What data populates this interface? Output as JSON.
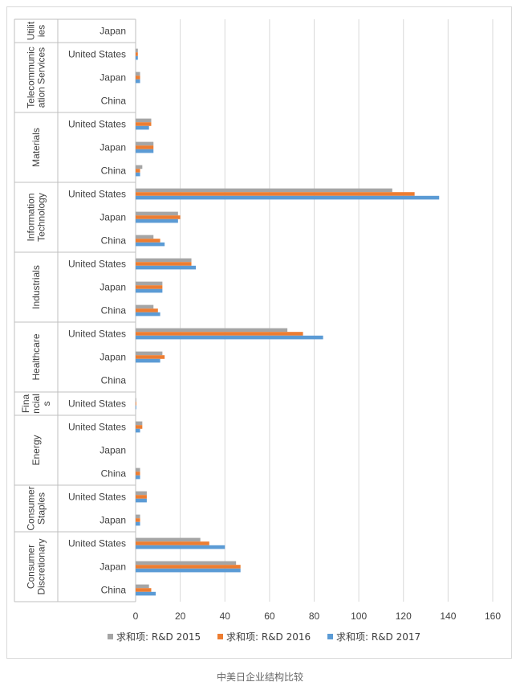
{
  "caption": "中美日企业结构比较",
  "colors": {
    "series_2015": "#a5a5a5",
    "series_2016": "#ed7d31",
    "series_2017": "#5b9bd5",
    "grid": "#d9d9d9",
    "text": "#404040"
  },
  "chart_data": {
    "type": "bar",
    "orientation": "horizontal",
    "title": "",
    "xlim": [
      0,
      160
    ],
    "xticks": [
      0,
      20,
      40,
      60,
      80,
      100,
      120,
      140,
      160
    ],
    "grid": true,
    "legend_position": "bottom",
    "series": [
      {
        "name": "求和项: R&D 2015"
      },
      {
        "name": "求和项: R&D 2016"
      },
      {
        "name": "求和项: R&D 2017"
      }
    ],
    "groups": [
      {
        "sector": "Utilities",
        "sector_lines": [
          "Utilit",
          "ies"
        ],
        "rows": [
          {
            "country": "Japan",
            "values": [
              0,
              0,
              0
            ]
          }
        ]
      },
      {
        "sector": "Telecommunication Services",
        "sector_lines": [
          "Telecommunic",
          "ation Services"
        ],
        "rows": [
          {
            "country": "United States",
            "values": [
              1,
              1,
              1
            ]
          },
          {
            "country": "Japan",
            "values": [
              2,
              2,
              2
            ]
          },
          {
            "country": "China",
            "values": [
              0,
              0,
              0
            ]
          }
        ]
      },
      {
        "sector": "Materials",
        "sector_lines": [
          "Materials"
        ],
        "rows": [
          {
            "country": "United States",
            "values": [
              7,
              7,
              6
            ]
          },
          {
            "country": "Japan",
            "values": [
              8,
              8,
              8
            ]
          },
          {
            "country": "China",
            "values": [
              3,
              2,
              2
            ]
          }
        ]
      },
      {
        "sector": "Information Technology",
        "sector_lines": [
          "Information",
          "Technology"
        ],
        "rows": [
          {
            "country": "United States",
            "values": [
              115,
              125,
              136
            ]
          },
          {
            "country": "Japan",
            "values": [
              19,
              20,
              19
            ]
          },
          {
            "country": "China",
            "values": [
              8,
              11,
              13
            ]
          }
        ]
      },
      {
        "sector": "Industrials",
        "sector_lines": [
          "Industrials"
        ],
        "rows": [
          {
            "country": "United States",
            "values": [
              25,
              25,
              27
            ]
          },
          {
            "country": "Japan",
            "values": [
              12,
              12,
              12
            ]
          },
          {
            "country": "China",
            "values": [
              8,
              10,
              11
            ]
          }
        ]
      },
      {
        "sector": "Healthcare",
        "sector_lines": [
          "Healthcare"
        ],
        "rows": [
          {
            "country": "United States",
            "values": [
              68,
              75,
              84
            ]
          },
          {
            "country": "Japan",
            "values": [
              12,
              13,
              11
            ]
          },
          {
            "country": "China",
            "values": [
              0,
              0,
              0
            ]
          }
        ]
      },
      {
        "sector": "Financials",
        "sector_lines": [
          "Fina",
          "ncial",
          "s"
        ],
        "rows": [
          {
            "country": "United States",
            "values": [
              0.3,
              0.3,
              0.3
            ]
          }
        ]
      },
      {
        "sector": "Energy",
        "sector_lines": [
          "Energy"
        ],
        "rows": [
          {
            "country": "United States",
            "values": [
              3,
              3,
              2
            ]
          },
          {
            "country": "Japan",
            "values": [
              0,
              0,
              0
            ]
          },
          {
            "country": "China",
            "values": [
              2,
              2,
              2
            ]
          }
        ]
      },
      {
        "sector": "Consumer Staples",
        "sector_lines": [
          "Consumer",
          "Staples"
        ],
        "rows": [
          {
            "country": "United States",
            "values": [
              5,
              5,
              5
            ]
          },
          {
            "country": "Japan",
            "values": [
              2,
              2,
              2
            ]
          }
        ]
      },
      {
        "sector": "Consumer Discretionary",
        "sector_lines": [
          "Consumer",
          "Discretionary"
        ],
        "rows": [
          {
            "country": "United States",
            "values": [
              29,
              33,
              40
            ]
          },
          {
            "country": "Japan",
            "values": [
              45,
              47,
              47
            ]
          },
          {
            "country": "China",
            "values": [
              6,
              7,
              9
            ]
          }
        ]
      }
    ]
  }
}
